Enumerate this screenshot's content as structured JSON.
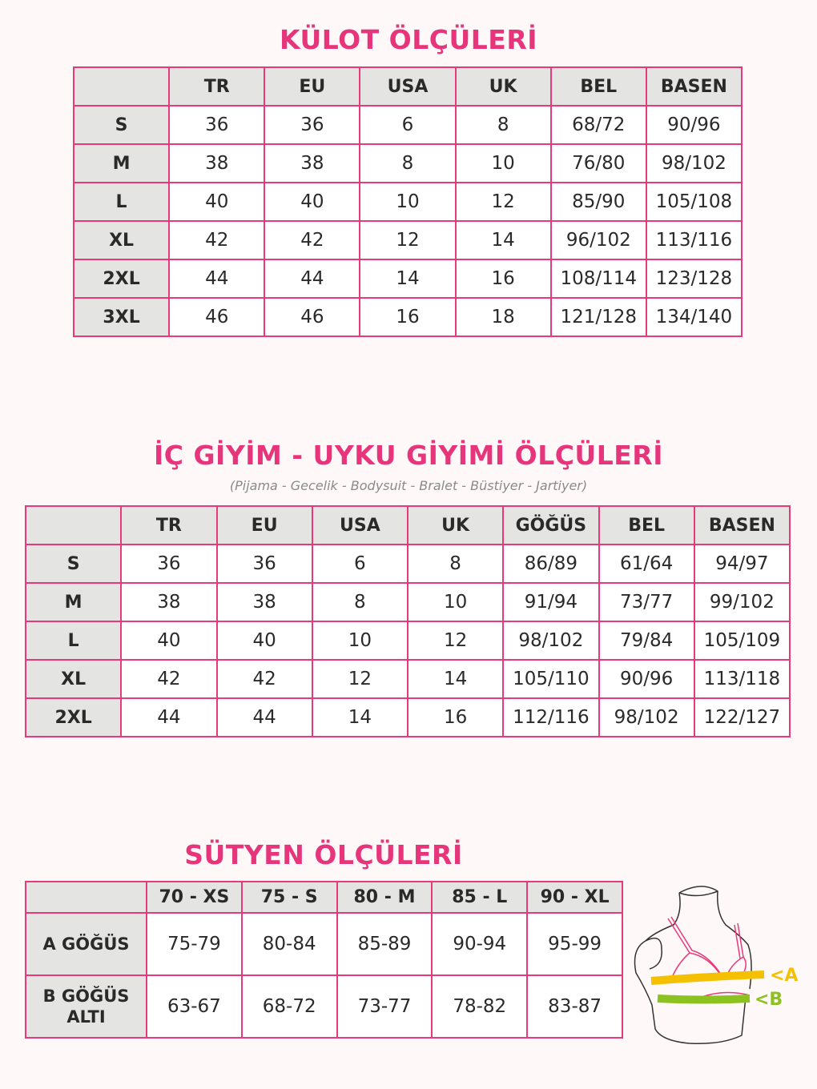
{
  "kulot": {
    "title": "KÜLOT ÖLÇÜLERİ",
    "headers": [
      "",
      "TR",
      "EU",
      "USA",
      "UK",
      "BEL",
      "BASEN"
    ],
    "rows": [
      [
        "S",
        "36",
        "36",
        "6",
        "8",
        "68/72",
        "90/96"
      ],
      [
        "M",
        "38",
        "38",
        "8",
        "10",
        "76/80",
        "98/102"
      ],
      [
        "L",
        "40",
        "40",
        "10",
        "12",
        "85/90",
        "105/108"
      ],
      [
        "XL",
        "42",
        "42",
        "12",
        "14",
        "96/102",
        "113/116"
      ],
      [
        "2XL",
        "44",
        "44",
        "14",
        "16",
        "108/114",
        "123/128"
      ],
      [
        "3XL",
        "46",
        "46",
        "16",
        "18",
        "121/128",
        "134/140"
      ]
    ]
  },
  "ic_giyim": {
    "title": "İÇ GİYİM - UYKU GİYİMİ ÖLÇÜLERİ",
    "subtitle": "(Pijama - Gecelik - Bodysuit - Bralet - Büstiyer - Jartiyer)",
    "headers": [
      "",
      "TR",
      "EU",
      "USA",
      "UK",
      "GÖĞÜS",
      "BEL",
      "BASEN"
    ],
    "rows": [
      [
        "S",
        "36",
        "36",
        "6",
        "8",
        "86/89",
        "61/64",
        "94/97"
      ],
      [
        "M",
        "38",
        "38",
        "8",
        "10",
        "91/94",
        "73/77",
        "99/102"
      ],
      [
        "L",
        "40",
        "40",
        "10",
        "12",
        "98/102",
        "79/84",
        "105/109"
      ],
      [
        "XL",
        "42",
        "42",
        "12",
        "14",
        "105/110",
        "90/96",
        "113/118"
      ],
      [
        "2XL",
        "44",
        "44",
        "14",
        "16",
        "112/116",
        "98/102",
        "122/127"
      ]
    ]
  },
  "sutyen": {
    "title": "SÜTYEN ÖLÇÜLERİ",
    "headers": [
      "",
      "70 - XS",
      "75 - S",
      "80 - M",
      "85 - L",
      "90 - XL"
    ],
    "rows": [
      [
        "A GÖĞÜS",
        "75-79",
        "80-84",
        "85-89",
        "90-94",
        "95-99"
      ],
      [
        "B GÖĞÜS ALTI",
        "63-67",
        "68-72",
        "73-77",
        "78-82",
        "83-87"
      ]
    ],
    "figure": {
      "label_a": "<A",
      "label_b": "<B",
      "color_a": "#f5c000",
      "color_b": "#8cc21f",
      "bra_color": "#e8397a"
    }
  },
  "colors": {
    "accent": "#e6357a",
    "border": "#e8397a",
    "header_bg": "#e4e4e2",
    "background": "#fff8f8"
  }
}
